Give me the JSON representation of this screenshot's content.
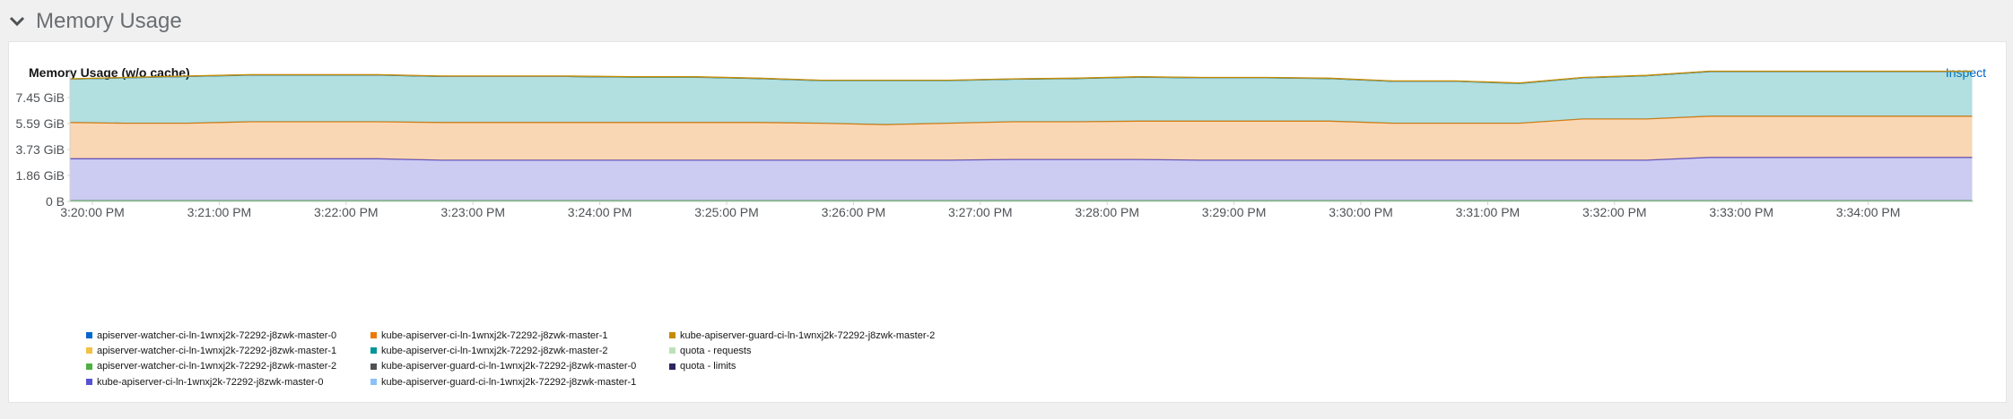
{
  "section": {
    "title": "Memory Usage",
    "chevron": "chevron-down-icon"
  },
  "card": {
    "title": "Memory Usage (w/o cache)",
    "inspect_label": "Inspect"
  },
  "legend": {
    "items": [
      {
        "label": "apiserver-watcher-ci-ln-1wnxj2k-72292-j8zwk-master-0",
        "color": "#0066cc"
      },
      {
        "label": "apiserver-watcher-ci-ln-1wnxj2k-72292-j8zwk-master-1",
        "color": "#f4c145"
      },
      {
        "label": "apiserver-watcher-ci-ln-1wnxj2k-72292-j8zwk-master-2",
        "color": "#4cb140"
      },
      {
        "label": "kube-apiserver-ci-ln-1wnxj2k-72292-j8zwk-master-0",
        "color": "#5752d1"
      },
      {
        "label": "kube-apiserver-ci-ln-1wnxj2k-72292-j8zwk-master-1",
        "color": "#ec7a08"
      },
      {
        "label": "kube-apiserver-ci-ln-1wnxj2k-72292-j8zwk-master-2",
        "color": "#009596"
      },
      {
        "label": "kube-apiserver-guard-ci-ln-1wnxj2k-72292-j8zwk-master-0",
        "color": "#4f5255"
      },
      {
        "label": "kube-apiserver-guard-ci-ln-1wnxj2k-72292-j8zwk-master-1",
        "color": "#8bc1f7"
      },
      {
        "label": "kube-apiserver-guard-ci-ln-1wnxj2k-72292-j8zwk-master-2",
        "color": "#c58c00"
      },
      {
        "label": "quota - requests",
        "color": "#bde2b9"
      },
      {
        "label": "quota - limits",
        "color": "#2a265f"
      }
    ]
  },
  "chart_data": {
    "type": "area",
    "stacked": true,
    "y_tick_labels": [
      "0 B",
      "1.86 GiB",
      "3.73 GiB",
      "5.59 GiB",
      "7.45 GiB"
    ],
    "y_ticks": [
      0,
      1.86,
      3.73,
      5.59,
      7.45
    ],
    "ylim": [
      0,
      9.5
    ],
    "x_tick_labels": [
      "3:20:00 PM",
      "3:21:00 PM",
      "3:22:00 PM",
      "3:23:00 PM",
      "3:24:00 PM",
      "3:25:00 PM",
      "3:26:00 PM",
      "3:27:00 PM",
      "3:28:00 PM",
      "3:29:00 PM",
      "3:30:00 PM",
      "3:31:00 PM",
      "3:32:00 PM",
      "3:33:00 PM",
      "3:34:00 PM"
    ],
    "x_ticks": [
      0,
      1,
      2,
      3,
      4,
      5,
      6,
      7,
      8,
      9,
      10,
      11,
      12,
      13,
      14
    ],
    "x": [
      -0.18,
      0.25,
      0.75,
      1.25,
      1.75,
      2.25,
      2.75,
      3.25,
      3.75,
      4.25,
      4.75,
      5.25,
      5.75,
      6.25,
      6.75,
      7.25,
      7.75,
      8.25,
      8.75,
      9.25,
      9.75,
      10.25,
      10.75,
      11.25,
      11.75,
      12.25,
      12.75,
      13.25,
      13.75,
      14.25,
      14.82
    ],
    "grid": false,
    "legend_position": "bottom",
    "series": [
      {
        "name": "apiserver-watcher-ci-ln-1wnxj2k-72292-j8zwk-master-0",
        "color": "#0066cc",
        "values": [
          0.02,
          0.02,
          0.02,
          0.02,
          0.02,
          0.02,
          0.02,
          0.02,
          0.02,
          0.02,
          0.02,
          0.02,
          0.02,
          0.02,
          0.02,
          0.02,
          0.02,
          0.02,
          0.02,
          0.02,
          0.02,
          0.02,
          0.02,
          0.02,
          0.02,
          0.02,
          0.02,
          0.02,
          0.02,
          0.02,
          0.02
        ]
      },
      {
        "name": "apiserver-watcher-ci-ln-1wnxj2k-72292-j8zwk-master-1",
        "color": "#f4c145",
        "values": [
          0.02,
          0.02,
          0.02,
          0.02,
          0.02,
          0.02,
          0.02,
          0.02,
          0.02,
          0.02,
          0.02,
          0.02,
          0.02,
          0.02,
          0.02,
          0.02,
          0.02,
          0.02,
          0.02,
          0.02,
          0.02,
          0.02,
          0.02,
          0.02,
          0.02,
          0.02,
          0.02,
          0.02,
          0.02,
          0.02,
          0.02
        ]
      },
      {
        "name": "apiserver-watcher-ci-ln-1wnxj2k-72292-j8zwk-master-2",
        "color": "#4cb140",
        "values": [
          0.02,
          0.02,
          0.02,
          0.02,
          0.02,
          0.02,
          0.02,
          0.02,
          0.02,
          0.02,
          0.02,
          0.02,
          0.02,
          0.02,
          0.02,
          0.02,
          0.02,
          0.02,
          0.02,
          0.02,
          0.02,
          0.02,
          0.02,
          0.02,
          0.02,
          0.02,
          0.02,
          0.02,
          0.02,
          0.02,
          0.02
        ]
      },
      {
        "name": "kube-apiserver-ci-ln-1wnxj2k-72292-j8zwk-master-0",
        "color": "#5752d1",
        "values": [
          3.0,
          3.0,
          3.0,
          3.0,
          3.0,
          3.0,
          2.9,
          2.9,
          2.9,
          2.9,
          2.9,
          2.9,
          2.9,
          2.9,
          2.9,
          2.95,
          2.95,
          2.95,
          2.9,
          2.9,
          2.9,
          2.9,
          2.9,
          2.9,
          2.9,
          2.9,
          3.1,
          3.1,
          3.1,
          3.1,
          3.1
        ]
      },
      {
        "name": "kube-apiserver-ci-ln-1wnxj2k-72292-j8zwk-master-1",
        "color": "#ec7a08",
        "values": [
          2.6,
          2.55,
          2.55,
          2.65,
          2.65,
          2.65,
          2.7,
          2.7,
          2.7,
          2.7,
          2.7,
          2.7,
          2.65,
          2.55,
          2.65,
          2.7,
          2.7,
          2.75,
          2.8,
          2.8,
          2.8,
          2.65,
          2.65,
          2.65,
          2.95,
          2.95,
          2.95,
          2.95,
          2.95,
          2.95,
          2.95
        ]
      },
      {
        "name": "kube-apiserver-ci-ln-1wnxj2k-72292-j8zwk-master-2",
        "color": "#009596",
        "values": [
          3.1,
          3.25,
          3.35,
          3.35,
          3.35,
          3.35,
          3.3,
          3.3,
          3.3,
          3.25,
          3.25,
          3.15,
          3.05,
          3.15,
          3.05,
          3.05,
          3.1,
          3.15,
          3.1,
          3.1,
          3.05,
          3.0,
          3.0,
          2.85,
          2.95,
          3.1,
          3.2,
          3.2,
          3.2,
          3.2,
          3.2
        ]
      },
      {
        "name": "kube-apiserver-guard-ci-ln-1wnxj2k-72292-j8zwk-master-0",
        "color": "#4f5255",
        "values": [
          0.01,
          0.01,
          0.01,
          0.01,
          0.01,
          0.01,
          0.01,
          0.01,
          0.01,
          0.01,
          0.01,
          0.01,
          0.01,
          0.01,
          0.01,
          0.01,
          0.01,
          0.01,
          0.01,
          0.01,
          0.01,
          0.01,
          0.01,
          0.01,
          0.01,
          0.01,
          0.01,
          0.01,
          0.01,
          0.01,
          0.01
        ]
      },
      {
        "name": "kube-apiserver-guard-ci-ln-1wnxj2k-72292-j8zwk-master-1",
        "color": "#8bc1f7",
        "values": [
          0.01,
          0.01,
          0.01,
          0.01,
          0.01,
          0.01,
          0.01,
          0.01,
          0.01,
          0.01,
          0.01,
          0.01,
          0.01,
          0.01,
          0.01,
          0.01,
          0.01,
          0.01,
          0.01,
          0.01,
          0.01,
          0.01,
          0.01,
          0.01,
          0.01,
          0.01,
          0.01,
          0.01,
          0.01,
          0.01,
          0.01
        ]
      },
      {
        "name": "kube-apiserver-guard-ci-ln-1wnxj2k-72292-j8zwk-master-2",
        "color": "#c58c00",
        "values": [
          0.01,
          0.01,
          0.01,
          0.01,
          0.01,
          0.01,
          0.01,
          0.01,
          0.01,
          0.01,
          0.01,
          0.01,
          0.01,
          0.01,
          0.01,
          0.01,
          0.01,
          0.01,
          0.01,
          0.01,
          0.01,
          0.01,
          0.01,
          0.01,
          0.01,
          0.01,
          0.01,
          0.01,
          0.01,
          0.01,
          0.01
        ]
      }
    ]
  }
}
